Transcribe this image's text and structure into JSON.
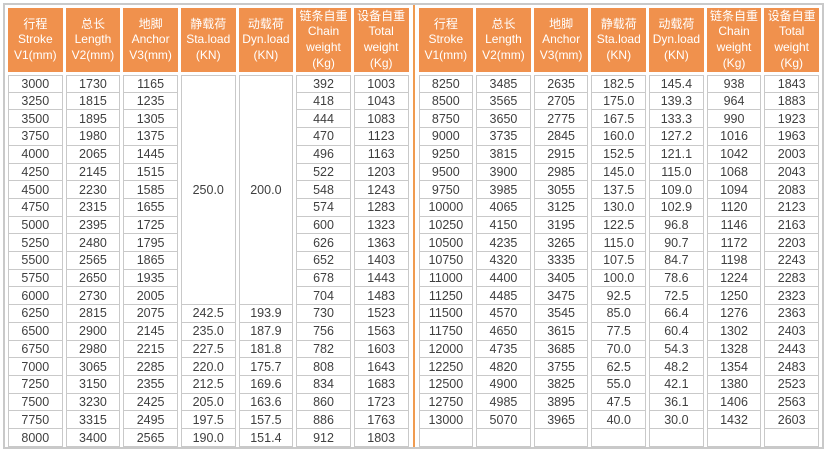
{
  "header": {
    "columns": [
      {
        "id": "stroke",
        "label": "行程\nStroke\nV1(mm)"
      },
      {
        "id": "length",
        "label": "总长\nLength\nV2(mm)"
      },
      {
        "id": "anchor",
        "label": "地脚\nAnchor\nV3(mm)"
      },
      {
        "id": "static-load",
        "label": "静载荷\nSta.load\n(KN)"
      },
      {
        "id": "dynamic-load",
        "label": "动载荷\nDyn.load\n(KN)"
      },
      {
        "id": "chain-weight",
        "label": "链条自重\nChain\nweight\n(Kg)"
      },
      {
        "id": "total-weight",
        "label": "设备自重\nTotal\nweight\n(Kg)"
      }
    ]
  },
  "left_table": {
    "merged_load": {
      "row": 0,
      "col": 3,
      "span": 13,
      "values": [
        "250.0",
        "200.0"
      ]
    },
    "rows": [
      [
        "3000",
        "1730",
        "1165",
        "",
        "",
        "392",
        "1003"
      ],
      [
        "3250",
        "1815",
        "1235",
        "",
        "",
        "418",
        "1043"
      ],
      [
        "3500",
        "1895",
        "1305",
        "",
        "",
        "444",
        "1083"
      ],
      [
        "3750",
        "1980",
        "1375",
        "",
        "",
        "470",
        "1123"
      ],
      [
        "4000",
        "2065",
        "1445",
        "",
        "",
        "496",
        "1163"
      ],
      [
        "4250",
        "2145",
        "1515",
        "",
        "",
        "522",
        "1203"
      ],
      [
        "4500",
        "2230",
        "1585",
        "",
        "",
        "548",
        "1243"
      ],
      [
        "4750",
        "2315",
        "1655",
        "",
        "",
        "574",
        "1283"
      ],
      [
        "5000",
        "2395",
        "1725",
        "",
        "",
        "600",
        "1323"
      ],
      [
        "5250",
        "2480",
        "1795",
        "",
        "",
        "626",
        "1363"
      ],
      [
        "5500",
        "2565",
        "1865",
        "",
        "",
        "652",
        "1403"
      ],
      [
        "5750",
        "2650",
        "1935",
        "",
        "",
        "678",
        "1443"
      ],
      [
        "6000",
        "2730",
        "2005",
        "",
        "",
        "704",
        "1483"
      ],
      [
        "6250",
        "2815",
        "2075",
        "242.5",
        "193.9",
        "730",
        "1523"
      ],
      [
        "6500",
        "2900",
        "2145",
        "235.0",
        "187.9",
        "756",
        "1563"
      ],
      [
        "6750",
        "2980",
        "2215",
        "227.5",
        "181.8",
        "782",
        "1603"
      ],
      [
        "7000",
        "3065",
        "2285",
        "220.0",
        "175.7",
        "808",
        "1643"
      ],
      [
        "7250",
        "3150",
        "2355",
        "212.5",
        "169.6",
        "834",
        "1683"
      ],
      [
        "7500",
        "3230",
        "2425",
        "205.0",
        "163.6",
        "860",
        "1723"
      ],
      [
        "7750",
        "3315",
        "2495",
        "197.5",
        "157.5",
        "886",
        "1763"
      ],
      [
        "8000",
        "3400",
        "2565",
        "190.0",
        "151.4",
        "912",
        "1803"
      ]
    ]
  },
  "right_table": {
    "rows": [
      [
        "8250",
        "3485",
        "2635",
        "182.5",
        "145.4",
        "938",
        "1843"
      ],
      [
        "8500",
        "3565",
        "2705",
        "175.0",
        "139.3",
        "964",
        "1883"
      ],
      [
        "8750",
        "3650",
        "2775",
        "167.5",
        "133.3",
        "990",
        "1923"
      ],
      [
        "9000",
        "3735",
        "2845",
        "160.0",
        "127.2",
        "1016",
        "1963"
      ],
      [
        "9250",
        "3815",
        "2915",
        "152.5",
        "121.1",
        "1042",
        "2003"
      ],
      [
        "9500",
        "3900",
        "2985",
        "145.0",
        "115.0",
        "1068",
        "2043"
      ],
      [
        "9750",
        "3985",
        "3055",
        "137.5",
        "109.0",
        "1094",
        "2083"
      ],
      [
        "10000",
        "4065",
        "3125",
        "130.0",
        "102.9",
        "1120",
        "2123"
      ],
      [
        "10250",
        "4150",
        "3195",
        "122.5",
        "96.8",
        "1146",
        "2163"
      ],
      [
        "10500",
        "4235",
        "3265",
        "115.0",
        "90.7",
        "1172",
        "2203"
      ],
      [
        "10750",
        "4320",
        "3335",
        "107.5",
        "84.7",
        "1198",
        "2243"
      ],
      [
        "11000",
        "4400",
        "3405",
        "100.0",
        "78.6",
        "1224",
        "2283"
      ],
      [
        "11250",
        "4485",
        "3475",
        "92.5",
        "72.5",
        "1250",
        "2323"
      ],
      [
        "11500",
        "4570",
        "3545",
        "85.0",
        "66.4",
        "1276",
        "2363"
      ],
      [
        "11750",
        "4650",
        "3615",
        "77.5",
        "60.4",
        "1302",
        "2403"
      ],
      [
        "12000",
        "4735",
        "3685",
        "70.0",
        "54.3",
        "1328",
        "2443"
      ],
      [
        "12250",
        "4820",
        "3755",
        "62.5",
        "48.2",
        "1354",
        "2483"
      ],
      [
        "12500",
        "4900",
        "3825",
        "55.0",
        "42.1",
        "1380",
        "2523"
      ],
      [
        "12750",
        "4985",
        "3895",
        "47.5",
        "36.1",
        "1406",
        "2563"
      ],
      [
        "13000",
        "5070",
        "3965",
        "40.0",
        "30.0",
        "1432",
        "2603"
      ],
      [
        "",
        "",
        "",
        "",
        "",
        "",
        ""
      ]
    ]
  },
  "colors": {
    "header_bg": "#F0914D",
    "header_text": "#FFFFFF",
    "divider": "#F09B50",
    "grid_line": "#C9C9C9",
    "cell_text": "#3F3F3F",
    "background": "#FFFFFF"
  }
}
